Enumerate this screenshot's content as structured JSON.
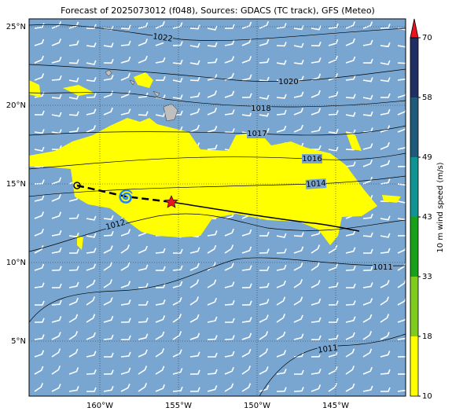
{
  "map": {
    "title": "Forecast of 2025073012 (f048), Sources: GDACS (TC track), GFS (Meteo)",
    "lat_ticks": [
      {
        "value": 25,
        "label": "25°N"
      },
      {
        "value": 20,
        "label": "20°N"
      },
      {
        "value": 15,
        "label": "15°N"
      },
      {
        "value": 10,
        "label": "10°N"
      },
      {
        "value": 5,
        "label": "5°N"
      }
    ],
    "lon_ticks": [
      {
        "value": -160,
        "label": "160°W"
      },
      {
        "value": -155,
        "label": "155°W"
      },
      {
        "value": -150,
        "label": "150°W"
      },
      {
        "value": -145,
        "label": "145°W"
      }
    ],
    "isobar_labels": [
      1022,
      1020,
      1018,
      1017,
      1016,
      1014,
      1012,
      1011,
      1011
    ],
    "colorbar": {
      "label": "10 m wind speed (m/s)",
      "ticks": [
        10,
        18,
        33,
        43,
        49,
        58,
        70
      ],
      "colors": [
        "#ffff00",
        "#7fcc1f",
        "#18a018",
        "#0f9393",
        "#1f5a7a",
        "#1f2f63"
      ],
      "extend_color": "#e8141e"
    }
  }
}
